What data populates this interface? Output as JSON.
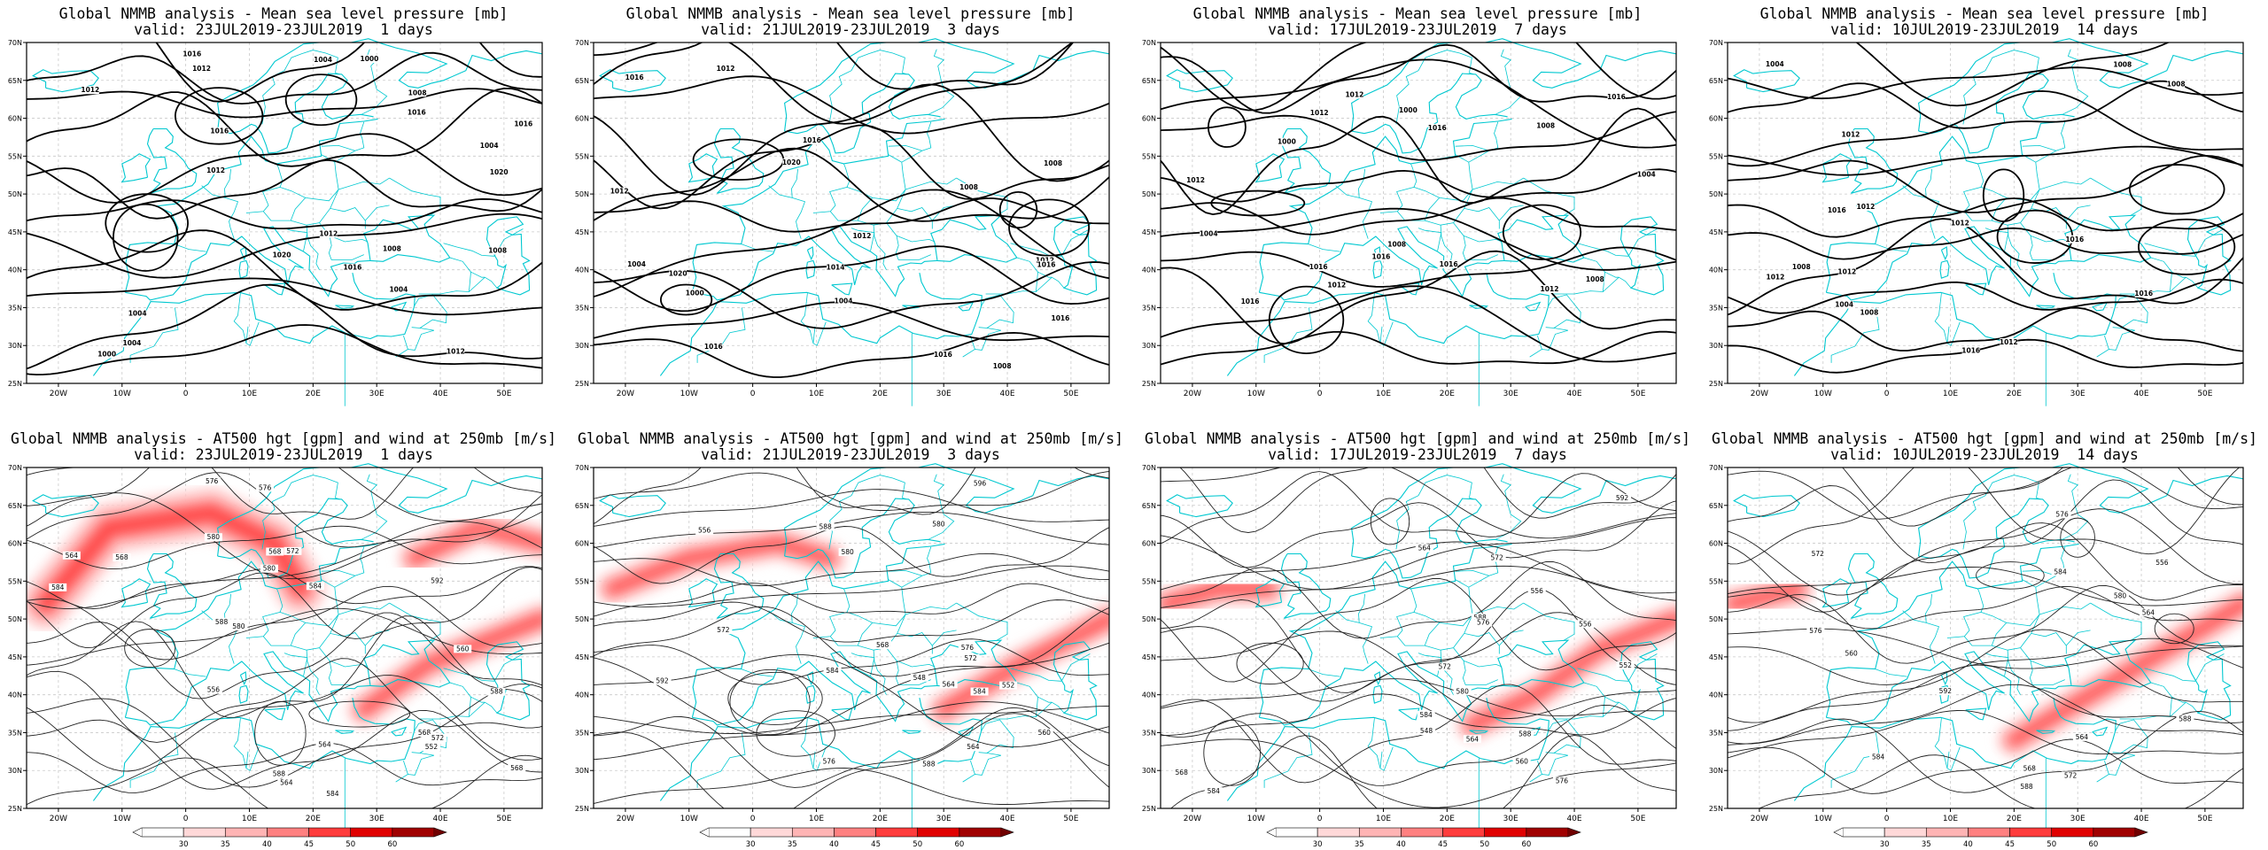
{
  "panels": [
    {
      "line1": "Global NMMB analysis - Mean sea level pressure [mb]",
      "line2": "valid: 23JUL2019-23JUL2019  1 days",
      "type": "mslp"
    },
    {
      "line1": "Global NMMB analysis - Mean sea level pressure [mb]",
      "line2": "valid: 21JUL2019-23JUL2019  3 days",
      "type": "mslp"
    },
    {
      "line1": "Global NMMB analysis - Mean sea level pressure [mb]",
      "line2": "valid: 17JUL2019-23JUL2019  7 days",
      "type": "mslp"
    },
    {
      "line1": "Global NMMB analysis - Mean sea level pressure [mb]",
      "line2": "valid: 10JUL2019-23JUL2019  14 days",
      "type": "mslp"
    },
    {
      "line1": "Global NMMB analysis - AT500 hgt [gpm] and wind at 250mb [m/s]",
      "line2": "valid: 23JUL2019-23JUL2019  1 days",
      "type": "z500"
    },
    {
      "line1": "Global NMMB analysis - AT500 hgt [gpm] and wind at 250mb [m/s]",
      "line2": "valid: 21JUL2019-23JUL2019  3 days",
      "type": "z500"
    },
    {
      "line1": "Global NMMB analysis - AT500 hgt [gpm] and wind at 250mb [m/s]",
      "line2": "valid: 17JUL2019-23JUL2019  7 days",
      "type": "z500"
    },
    {
      "line1": "Global NMMB analysis - AT500 hgt [gpm] and wind at 250mb [m/s]",
      "line2": "valid: 10JUL2019-23JUL2019  14 days",
      "type": "z500"
    }
  ],
  "lon_ticks": [
    "20W",
    "10W",
    "0",
    "10E",
    "20E",
    "30E",
    "40E",
    "50E"
  ],
  "lat_ticks": [
    "25N",
    "30N",
    "35N",
    "40N",
    "45N",
    "50N",
    "55N",
    "60N",
    "65N",
    "70N"
  ],
  "colorbar": {
    "ticks": [
      "30",
      "35",
      "40",
      "45",
      "50",
      "60"
    ],
    "colors": [
      "#ffffff",
      "#ffd8d8",
      "#ffb4b4",
      "#ff8080",
      "#ff3c3c",
      "#e00000",
      "#a00000"
    ]
  },
  "mslp_labels": [
    [
      "1008",
      "1004",
      "1004",
      "1000",
      "1008",
      "1012",
      "1016",
      "1020",
      "1012",
      "1016",
      "1016",
      "1020",
      "1012",
      "1004",
      "1000",
      "1008",
      "1004",
      "1012",
      "1016",
      "1016",
      "1004",
      "1012"
    ],
    [
      "1008",
      "1004",
      "1012",
      "1012",
      "1016",
      "1020",
      "1020",
      "1016",
      "1016",
      "1014",
      "1016",
      "1012",
      "1008",
      "1016",
      "1004",
      "1008",
      "1012",
      "1016",
      "1000"
    ],
    [
      "1008",
      "1012",
      "1000",
      "1012",
      "1008",
      "1016",
      "1016",
      "1016",
      "1012",
      "1016",
      "1016",
      "1016",
      "1012",
      "1008",
      "1004",
      "1004",
      "1012",
      "1000"
    ],
    [
      "1008",
      "1012",
      "1012",
      "1012",
      "1016",
      "1016",
      "1016",
      "1012",
      "1012",
      "1008",
      "1016",
      "1004",
      "1008",
      "1012",
      "1008",
      "1004"
    ]
  ],
  "z500_labels": [
    [
      "552",
      "556",
      "560",
      "564",
      "568",
      "572",
      "576",
      "580",
      "584",
      "588",
      "592",
      "564",
      "568",
      "568",
      "572",
      "576",
      "580",
      "584",
      "588",
      "580",
      "584",
      "588",
      "564",
      "568"
    ],
    [
      "552",
      "548",
      "556",
      "560",
      "564",
      "568",
      "572",
      "576",
      "580",
      "584",
      "588",
      "592",
      "564",
      "572",
      "576",
      "580",
      "584",
      "588",
      "596"
    ],
    [
      "556",
      "552",
      "548",
      "556",
      "560",
      "564",
      "568",
      "572",
      "576",
      "580",
      "584",
      "588",
      "592",
      "564",
      "572",
      "576",
      "584",
      "588"
    ],
    [
      "556",
      "560",
      "564",
      "568",
      "572",
      "576",
      "580",
      "584",
      "588",
      "592",
      "564",
      "572",
      "576",
      "584",
      "588"
    ]
  ]
}
